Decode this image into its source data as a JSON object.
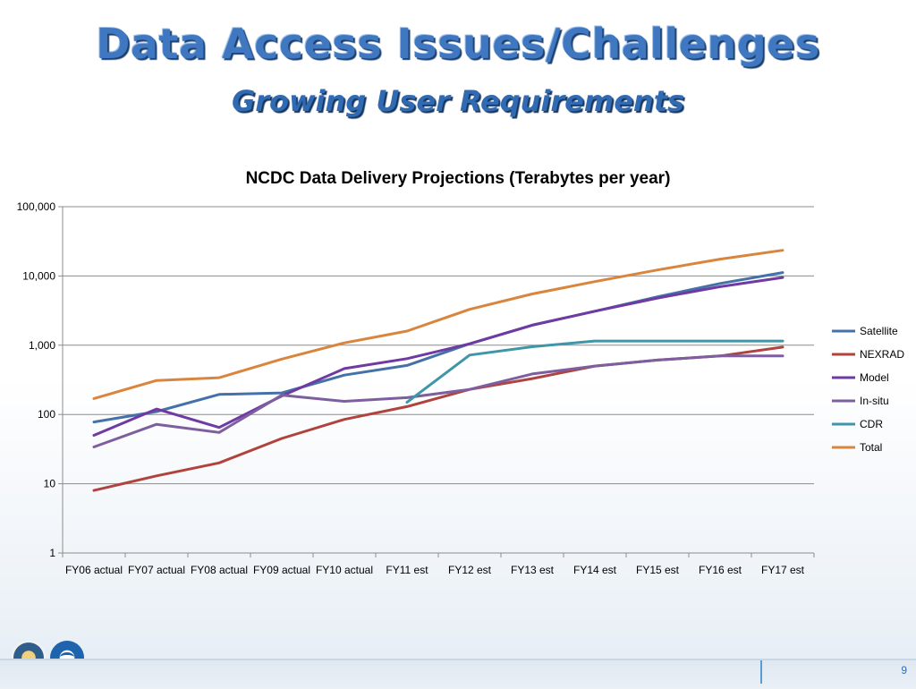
{
  "slide": {
    "title": "Data Access Issues/Challenges",
    "subtitle": "Growing User Requirements",
    "page_number": "9"
  },
  "logos": {
    "left": "commerce-seal-icon",
    "right": "noaa-logo-icon"
  },
  "chart_data": {
    "type": "line",
    "title": "NCDC Data Delivery Projections (Terabytes per year)",
    "yscale": "log",
    "ylim": [
      1,
      100000
    ],
    "yticks": [
      1,
      10,
      100,
      1000,
      10000,
      100000
    ],
    "ytick_labels": [
      "1",
      "10",
      "100",
      "1,000",
      "10,000",
      "100,000"
    ],
    "grid": true,
    "legend_position": "right",
    "categories": [
      "FY06 actual",
      "FY07 actual",
      "FY08 actual",
      "FY09 actual",
      "FY10 actual",
      "FY11 est",
      "FY12 est",
      "FY13 est",
      "FY14 est",
      "FY15 est",
      "FY16 est",
      "FY17 est"
    ],
    "series": [
      {
        "name": "Satellite",
        "color": "#4472a8",
        "values": [
          78,
          110,
          195,
          205,
          370,
          510,
          1050,
          1950,
          3100,
          5000,
          7800,
          11200
        ]
      },
      {
        "name": "NEXRAD",
        "color": "#b0433e",
        "values": [
          8,
          13,
          20,
          45,
          85,
          130,
          230,
          330,
          500,
          610,
          700,
          940
        ]
      },
      {
        "name": "Model",
        "color": "#6f3aa3",
        "values": [
          50,
          120,
          65,
          185,
          460,
          640,
          1050,
          1950,
          3100,
          4800,
          7000,
          9500
        ]
      },
      {
        "name": "In-situ",
        "color": "#7d5e9e",
        "values": [
          34,
          72,
          55,
          190,
          155,
          175,
          230,
          385,
          500,
          610,
          700,
          700
        ]
      },
      {
        "name": "CDR",
        "color": "#3e96a8",
        "values": [
          null,
          null,
          null,
          null,
          null,
          150,
          720,
          950,
          1150,
          1150,
          1150,
          1150
        ]
      },
      {
        "name": "Total",
        "color": "#d9853d",
        "values": [
          170,
          310,
          340,
          630,
          1080,
          1600,
          3300,
          5500,
          8300,
          12200,
          17500,
          23500
        ]
      }
    ]
  }
}
